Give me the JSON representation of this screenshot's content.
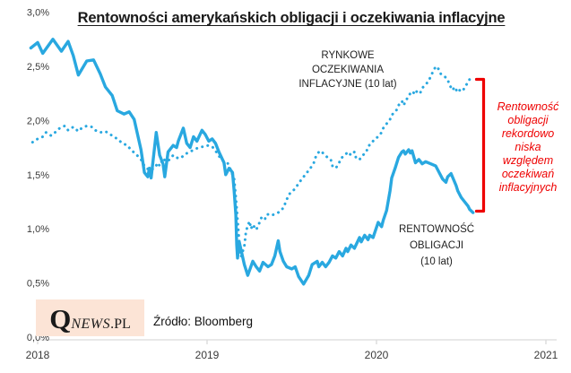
{
  "title": "Rentowności amerykańskich obligacji i oczekiwania inflacyjne",
  "source": "Źródło: Bloomberg",
  "logo": {
    "part1": "Q",
    "part2": "NEWS",
    "part3": ".PL"
  },
  "annotations": {
    "inflation_label": [
      "RYNKOWE",
      "OCZEKIWANIA",
      "INFLACYJNE  (10 lat)"
    ],
    "bond_label": [
      "RENTOWNOŚĆ",
      "OBLIGACJI",
      "(10 lat)"
    ],
    "bracket_note": [
      "Rentowność",
      "obligacji",
      "rekordowo",
      "niska",
      "względem",
      "oczekiwań",
      "inflacyjnych"
    ]
  },
  "colors": {
    "line_blue": "#29a8e0",
    "accent_red": "#ee0000",
    "logo_bg": "#fce4d6",
    "axis_gray": "#d9d9d9",
    "tick_text": "#3a3a3a"
  },
  "chart_data": {
    "type": "line",
    "title": "Rentowności amerykańskich obligacji i oczekiwania inflacyjne",
    "xlabel": "",
    "ylabel": "",
    "grid": false,
    "legend_position": "inline-annotations",
    "ylim": [
      0.0,
      3.0
    ],
    "xlim": [
      2017.95,
      2021.1
    ],
    "y_ticks": [
      {
        "label": "3,0%",
        "value": 3.0
      },
      {
        "label": "2,5%",
        "value": 2.5
      },
      {
        "label": "2,0%",
        "value": 2.0
      },
      {
        "label": "1,5%",
        "value": 1.5
      },
      {
        "label": "1,0%",
        "value": 1.0
      },
      {
        "label": "0,5%",
        "value": 0.5
      },
      {
        "label": "0,0%",
        "value": 0.0
      }
    ],
    "x_ticks": [
      {
        "label": "2018",
        "value": 2018
      },
      {
        "label": "2019",
        "value": 2019
      },
      {
        "label": "2020",
        "value": 2020
      },
      {
        "label": "2021",
        "value": 2021
      }
    ],
    "series": [
      {
        "name": "RYNKOWE OCZEKIWANIA INFLACYJNE (10 lat)",
        "style": "dotted",
        "unit": "%",
        "points": [
          [
            2017.97,
            1.8
          ],
          [
            2018.0,
            1.83
          ],
          [
            2018.03,
            1.85
          ],
          [
            2018.05,
            1.89
          ],
          [
            2018.08,
            1.86
          ],
          [
            2018.11,
            1.9
          ],
          [
            2018.13,
            1.93
          ],
          [
            2018.16,
            1.95
          ],
          [
            2018.18,
            1.91
          ],
          [
            2018.21,
            1.94
          ],
          [
            2018.24,
            1.9
          ],
          [
            2018.26,
            1.93
          ],
          [
            2018.29,
            1.95
          ],
          [
            2018.32,
            1.94
          ],
          [
            2018.34,
            1.91
          ],
          [
            2018.37,
            1.89
          ],
          [
            2018.4,
            1.9
          ],
          [
            2018.42,
            1.88
          ],
          [
            2018.45,
            1.85
          ],
          [
            2018.47,
            1.83
          ],
          [
            2018.5,
            1.79
          ],
          [
            2018.53,
            1.77
          ],
          [
            2018.55,
            1.73
          ],
          [
            2018.58,
            1.69
          ],
          [
            2018.61,
            1.64
          ],
          [
            2018.63,
            1.58
          ],
          [
            2018.66,
            1.54
          ],
          [
            2018.69,
            1.56
          ],
          [
            2018.71,
            1.61
          ],
          [
            2018.72,
            1.58
          ],
          [
            2018.74,
            1.65
          ],
          [
            2018.76,
            1.62
          ],
          [
            2018.78,
            1.64
          ],
          [
            2018.8,
            1.68
          ],
          [
            2018.83,
            1.65
          ],
          [
            2018.85,
            1.66
          ],
          [
            2018.87,
            1.69
          ],
          [
            2018.9,
            1.71
          ],
          [
            2018.92,
            1.73
          ],
          [
            2018.95,
            1.75
          ],
          [
            2018.98,
            1.76
          ],
          [
            2019.0,
            1.77
          ],
          [
            2019.03,
            1.76
          ],
          [
            2019.05,
            1.72
          ],
          [
            2019.08,
            1.65
          ],
          [
            2019.1,
            1.62
          ],
          [
            2019.12,
            1.61
          ],
          [
            2019.13,
            1.58
          ],
          [
            2019.16,
            1.46
          ],
          [
            2019.17,
            1.29
          ],
          [
            2019.18,
            1.08
          ],
          [
            2019.19,
            0.88
          ],
          [
            2019.2,
            0.74
          ],
          [
            2019.22,
            0.84
          ],
          [
            2019.23,
            0.98
          ],
          [
            2019.25,
            1.07
          ],
          [
            2019.26,
            1.0
          ],
          [
            2019.27,
            1.04
          ],
          [
            2019.29,
            0.99
          ],
          [
            2019.31,
            1.06
          ],
          [
            2019.32,
            1.1
          ],
          [
            2019.34,
            1.08
          ],
          [
            2019.35,
            1.13
          ],
          [
            2019.38,
            1.14
          ],
          [
            2019.39,
            1.13
          ],
          [
            2019.42,
            1.15
          ],
          [
            2019.43,
            1.17
          ],
          [
            2019.45,
            1.19
          ],
          [
            2019.47,
            1.27
          ],
          [
            2019.49,
            1.33
          ],
          [
            2019.52,
            1.37
          ],
          [
            2019.54,
            1.42
          ],
          [
            2019.56,
            1.46
          ],
          [
            2019.57,
            1.48
          ],
          [
            2019.59,
            1.52
          ],
          [
            2019.61,
            1.56
          ],
          [
            2019.63,
            1.61
          ],
          [
            2019.64,
            1.66
          ],
          [
            2019.66,
            1.71
          ],
          [
            2019.67,
            1.72
          ],
          [
            2019.69,
            1.69
          ],
          [
            2019.71,
            1.66
          ],
          [
            2019.73,
            1.64
          ],
          [
            2019.74,
            1.58
          ],
          [
            2019.76,
            1.56
          ],
          [
            2019.78,
            1.61
          ],
          [
            2019.79,
            1.65
          ],
          [
            2019.82,
            1.69
          ],
          [
            2019.83,
            1.71
          ],
          [
            2019.85,
            1.68
          ],
          [
            2019.87,
            1.71
          ],
          [
            2019.88,
            1.65
          ],
          [
            2019.9,
            1.64
          ],
          [
            2019.92,
            1.68
          ],
          [
            2019.94,
            1.71
          ],
          [
            2019.95,
            1.76
          ],
          [
            2019.97,
            1.79
          ],
          [
            2019.99,
            1.83
          ],
          [
            2020.01,
            1.85
          ],
          [
            2020.03,
            1.89
          ],
          [
            2020.04,
            1.93
          ],
          [
            2020.06,
            1.97
          ],
          [
            2020.08,
            2.01
          ],
          [
            2020.09,
            2.05
          ],
          [
            2020.12,
            2.1
          ],
          [
            2020.13,
            2.14
          ],
          [
            2020.15,
            2.18
          ],
          [
            2020.16,
            2.14
          ],
          [
            2020.18,
            2.2
          ],
          [
            2020.19,
            2.23
          ],
          [
            2020.21,
            2.27
          ],
          [
            2020.23,
            2.24
          ],
          [
            2020.24,
            2.28
          ],
          [
            2020.26,
            2.26
          ],
          [
            2020.27,
            2.3
          ],
          [
            2020.29,
            2.33
          ],
          [
            2020.31,
            2.37
          ],
          [
            2020.32,
            2.41
          ],
          [
            2020.34,
            2.47
          ],
          [
            2020.35,
            2.5
          ],
          [
            2020.37,
            2.47
          ],
          [
            2020.38,
            2.43
          ],
          [
            2020.4,
            2.41
          ],
          [
            2020.42,
            2.38
          ],
          [
            2020.43,
            2.33
          ],
          [
            2020.45,
            2.28
          ],
          [
            2020.46,
            2.31
          ],
          [
            2020.48,
            2.26
          ],
          [
            2020.49,
            2.28
          ],
          [
            2020.51,
            2.27
          ],
          [
            2020.52,
            2.31
          ],
          [
            2020.54,
            2.35
          ],
          [
            2020.55,
            2.38
          ]
        ]
      },
      {
        "name": "RENTOWNOŚĆ OBLIGACJI (10 lat)",
        "style": "solid",
        "unit": "%",
        "points": [
          [
            2017.96,
            2.67
          ],
          [
            2018.0,
            2.72
          ],
          [
            2018.03,
            2.62
          ],
          [
            2018.09,
            2.75
          ],
          [
            2018.14,
            2.64
          ],
          [
            2018.18,
            2.73
          ],
          [
            2018.21,
            2.6
          ],
          [
            2018.24,
            2.42
          ],
          [
            2018.29,
            2.55
          ],
          [
            2018.33,
            2.56
          ],
          [
            2018.37,
            2.43
          ],
          [
            2018.4,
            2.31
          ],
          [
            2018.44,
            2.23
          ],
          [
            2018.47,
            2.09
          ],
          [
            2018.51,
            2.06
          ],
          [
            2018.54,
            2.08
          ],
          [
            2018.57,
            2.01
          ],
          [
            2018.59,
            1.87
          ],
          [
            2018.61,
            1.73
          ],
          [
            2018.63,
            1.52
          ],
          [
            2018.65,
            1.48
          ],
          [
            2018.66,
            1.56
          ],
          [
            2018.67,
            1.47
          ],
          [
            2018.7,
            1.89
          ],
          [
            2018.72,
            1.68
          ],
          [
            2018.74,
            1.6
          ],
          [
            2018.75,
            1.48
          ],
          [
            2018.77,
            1.71
          ],
          [
            2018.8,
            1.77
          ],
          [
            2018.82,
            1.75
          ],
          [
            2018.83,
            1.81
          ],
          [
            2018.86,
            1.93
          ],
          [
            2018.88,
            1.79
          ],
          [
            2018.9,
            1.75
          ],
          [
            2018.92,
            1.85
          ],
          [
            2018.94,
            1.81
          ],
          [
            2018.97,
            1.91
          ],
          [
            2018.99,
            1.87
          ],
          [
            2019.01,
            1.81
          ],
          [
            2019.03,
            1.83
          ],
          [
            2019.05,
            1.79
          ],
          [
            2019.07,
            1.71
          ],
          [
            2019.1,
            1.61
          ],
          [
            2019.11,
            1.5
          ],
          [
            2019.13,
            1.56
          ],
          [
            2019.15,
            1.52
          ],
          [
            2019.16,
            1.35
          ],
          [
            2019.17,
            1.13
          ],
          [
            2019.175,
            0.85
          ],
          [
            2019.18,
            0.73
          ],
          [
            2019.19,
            0.88
          ],
          [
            2019.22,
            0.67
          ],
          [
            2019.24,
            0.57
          ],
          [
            2019.27,
            0.7
          ],
          [
            2019.29,
            0.65
          ],
          [
            2019.31,
            0.61
          ],
          [
            2019.33,
            0.69
          ],
          [
            2019.36,
            0.65
          ],
          [
            2019.38,
            0.67
          ],
          [
            2019.4,
            0.75
          ],
          [
            2019.42,
            0.89
          ],
          [
            2019.43,
            0.79
          ],
          [
            2019.45,
            0.7
          ],
          [
            2019.47,
            0.65
          ],
          [
            2019.5,
            0.63
          ],
          [
            2019.52,
            0.65
          ],
          [
            2019.54,
            0.56
          ],
          [
            2019.57,
            0.49
          ],
          [
            2019.6,
            0.57
          ],
          [
            2019.62,
            0.67
          ],
          [
            2019.65,
            0.7
          ],
          [
            2019.66,
            0.65
          ],
          [
            2019.68,
            0.69
          ],
          [
            2019.7,
            0.65
          ],
          [
            2019.72,
            0.69
          ],
          [
            2019.74,
            0.75
          ],
          [
            2019.76,
            0.73
          ],
          [
            2019.78,
            0.79
          ],
          [
            2019.8,
            0.75
          ],
          [
            2019.82,
            0.82
          ],
          [
            2019.83,
            0.79
          ],
          [
            2019.85,
            0.85
          ],
          [
            2019.87,
            0.82
          ],
          [
            2019.9,
            0.92
          ],
          [
            2019.91,
            0.88
          ],
          [
            2019.93,
            0.94
          ],
          [
            2019.95,
            0.9
          ],
          [
            2019.96,
            0.94
          ],
          [
            2019.98,
            0.92
          ],
          [
            2020.01,
            1.06
          ],
          [
            2020.03,
            1.02
          ],
          [
            2020.04,
            1.08
          ],
          [
            2020.06,
            1.17
          ],
          [
            2020.08,
            1.35
          ],
          [
            2020.09,
            1.47
          ],
          [
            2020.11,
            1.56
          ],
          [
            2020.13,
            1.66
          ],
          [
            2020.15,
            1.71
          ],
          [
            2020.16,
            1.72
          ],
          [
            2020.17,
            1.69
          ],
          [
            2020.19,
            1.73
          ],
          [
            2020.2,
            1.7
          ],
          [
            2020.21,
            1.72
          ],
          [
            2020.23,
            1.61
          ],
          [
            2020.25,
            1.64
          ],
          [
            2020.27,
            1.6
          ],
          [
            2020.29,
            1.62
          ],
          [
            2020.32,
            1.6
          ],
          [
            2020.35,
            1.58
          ],
          [
            2020.37,
            1.52
          ],
          [
            2020.39,
            1.46
          ],
          [
            2020.41,
            1.43
          ],
          [
            2020.42,
            1.48
          ],
          [
            2020.44,
            1.51
          ],
          [
            2020.47,
            1.4
          ],
          [
            2020.48,
            1.35
          ],
          [
            2020.5,
            1.29
          ],
          [
            2020.52,
            1.25
          ],
          [
            2020.54,
            1.21
          ],
          [
            2020.55,
            1.18
          ],
          [
            2020.57,
            1.15
          ]
        ]
      }
    ]
  }
}
